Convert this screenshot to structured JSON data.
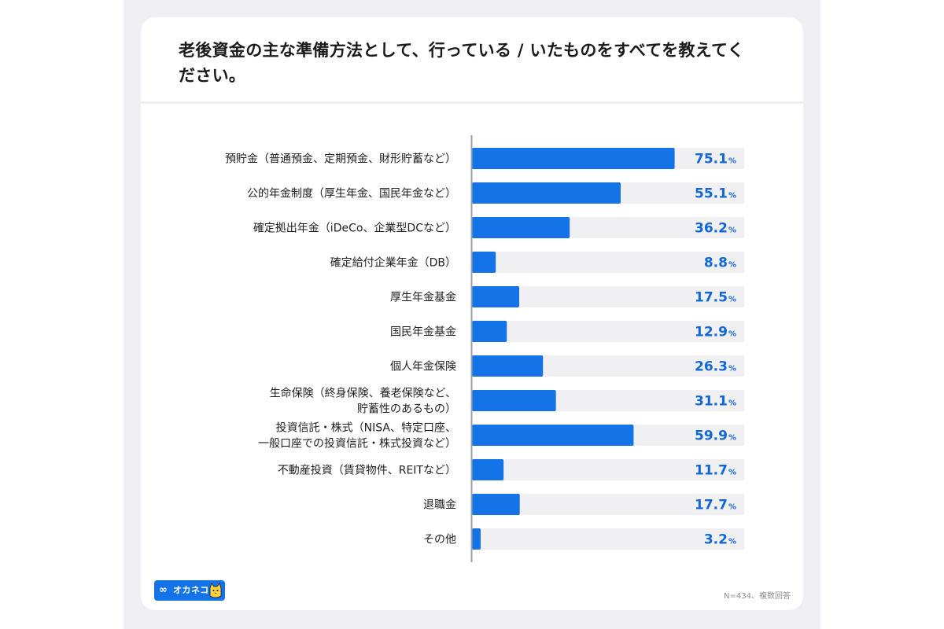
{
  "title": "老後資金の主な準備方法として、行っている / いたものをすべてを教えてください。",
  "note": "N=434、複数回答",
  "brand": {
    "name": "オカネコ",
    "symbol": "∞"
  },
  "colors": {
    "bar": "#1473e6",
    "track": "#f0f0f3",
    "value_text": "#1167d8",
    "axis": "#9aa0a6"
  },
  "chart_data": {
    "type": "bar",
    "orientation": "horizontal",
    "title": "老後資金の主な準備方法として、行っている / いたものをすべてを教えてください。",
    "xlim": [
      0,
      100
    ],
    "value_suffix": "%",
    "categories": [
      [
        "預貯金（普通預金、定期預金、財形貯蓄など）"
      ],
      [
        "公的年金制度（厚生年金、国民年金など）"
      ],
      [
        "確定拠出年金（iDeCo、企業型DCなど）"
      ],
      [
        "確定給付企業年金（DB）"
      ],
      [
        "厚生年金基金"
      ],
      [
        "国民年金基金"
      ],
      [
        "個人年金保険"
      ],
      [
        "生命保険（終身保険、養老保険など、",
        "貯蓄性のあるもの）"
      ],
      [
        "投資信託・株式（NISA、特定口座、",
        "一般口座での投資信託・株式投資など）"
      ],
      [
        "不動産投資（賃貸物件、REITなど）"
      ],
      [
        "退職金"
      ],
      [
        "その他"
      ]
    ],
    "values": [
      75.1,
      55.1,
      36.2,
      8.8,
      17.5,
      12.9,
      26.3,
      31.1,
      59.9,
      11.7,
      17.7,
      3.2
    ]
  }
}
